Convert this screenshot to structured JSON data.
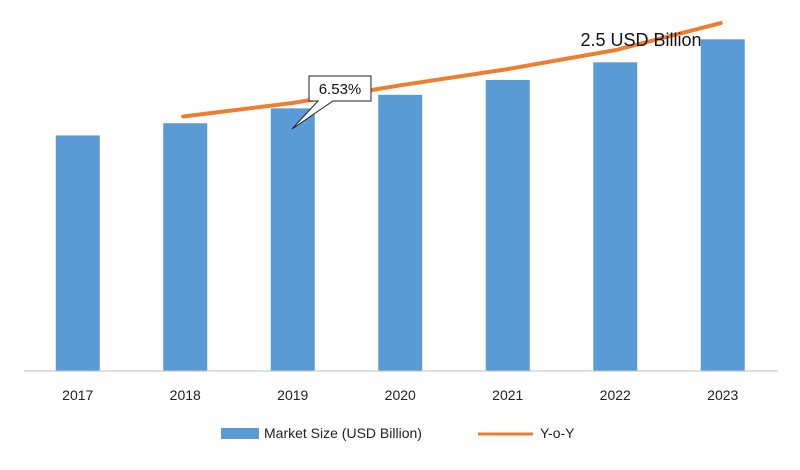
{
  "chart_data": {
    "type": "bar",
    "categories": [
      "2017",
      "2018",
      "2019",
      "2020",
      "2021",
      "2022",
      "2023"
    ],
    "series": [
      {
        "name": "Market Size (USD Billion)",
        "type": "bar",
        "values": [
          1.74,
          1.83,
          1.94,
          2.04,
          2.15,
          2.28,
          2.45
        ]
      },
      {
        "name": "Y-o-Y",
        "type": "line",
        "values": [
          null,
          1.88,
          1.98,
          2.11,
          2.23,
          2.37,
          2.57
        ]
      }
    ],
    "annotations": [
      {
        "text": "6.53%",
        "category": "2019"
      },
      {
        "text": "2.5 USD Billion",
        "category": "2023"
      }
    ],
    "ylim": [
      0,
      2.6
    ],
    "grid": false,
    "legend_position": "bottom",
    "colors": {
      "bar": "#5b9bd5",
      "line": "#ed7d31",
      "axis": "#bfbfbf"
    }
  }
}
